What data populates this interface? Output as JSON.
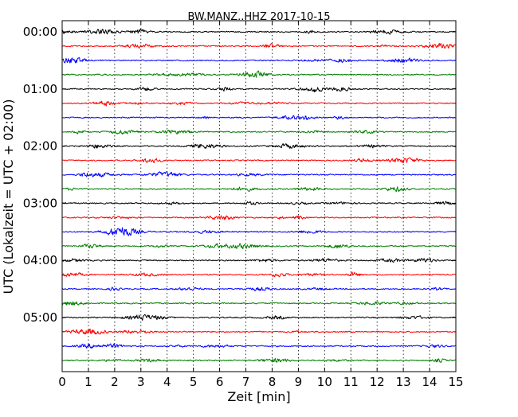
{
  "chart_data": {
    "type": "line",
    "title": "BW.MANZ..HHZ 2017-10-15",
    "xlabel": "Zeit  [min]",
    "ylabel": "UTC (Lokalzeit = UTC + 02:00)",
    "xlim": [
      0,
      15
    ],
    "xticks": [
      "0",
      "1",
      "2",
      "3",
      "4",
      "5",
      "6",
      "7",
      "8",
      "9",
      "10",
      "11",
      "12",
      "13",
      "14",
      "15"
    ],
    "y_tick_labels": [
      "00:00",
      "01:00",
      "02:00",
      "03:00",
      "04:00",
      "05:00"
    ],
    "trace_interval_minutes": 15,
    "trace_count": 24,
    "color_cycle": [
      "#000000",
      "#ff0000",
      "#0000ff",
      "#007f00"
    ],
    "grid": "vertical dotted lines at each minute"
  }
}
